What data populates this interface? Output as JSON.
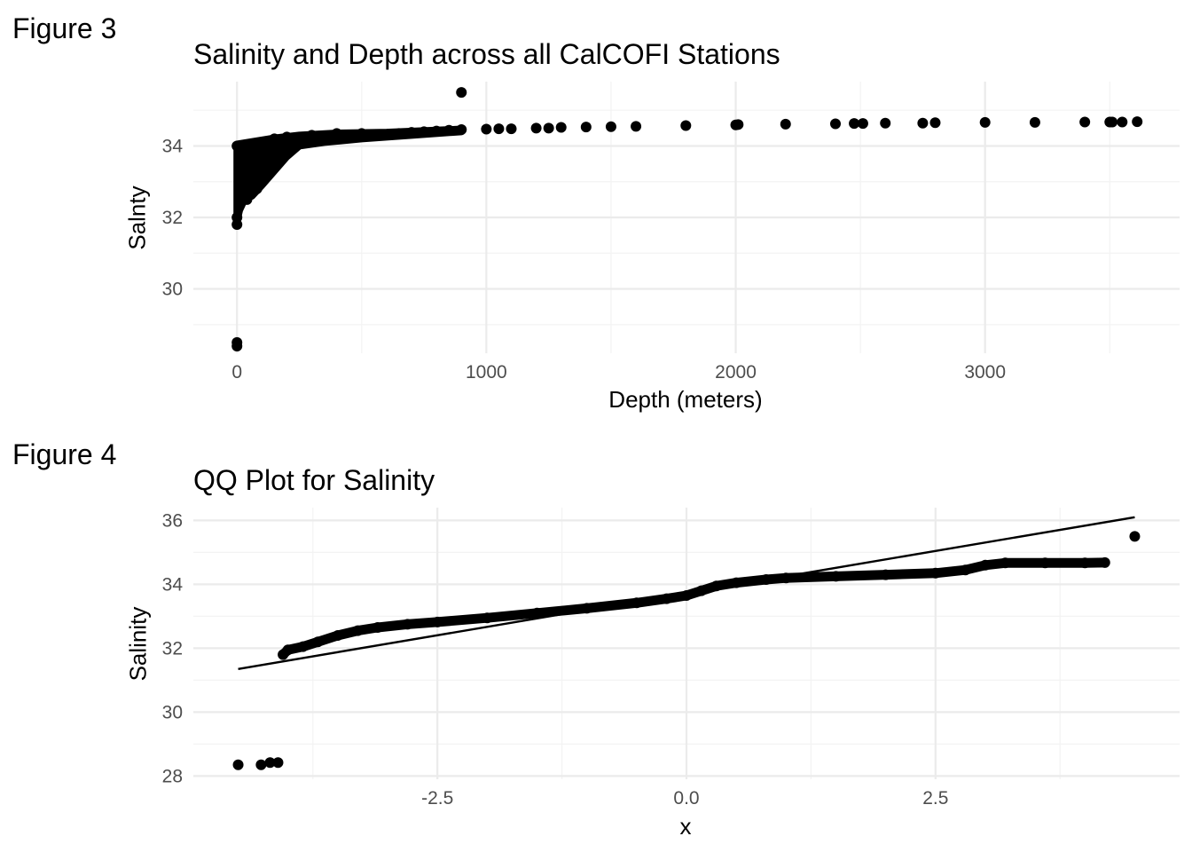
{
  "page": {
    "figure3_label": "Figure 3",
    "figure4_label": "Figure 4"
  },
  "colors": {
    "background": "#ffffff",
    "grid_major": "#ebebeb",
    "grid_minor": "#f3f3f3",
    "points": "#000000",
    "tick_text": "#4d4d4d"
  },
  "chart_data": [
    {
      "type": "scatter",
      "title": "Salinity and Depth across all CalCOFI Stations",
      "xlabel": "Depth (meters)",
      "ylabel": "Salnty",
      "xlim": [
        -175,
        3780
      ],
      "ylim": [
        28.2,
        35.8
      ],
      "x_ticks": [
        0,
        1000,
        2000,
        3000
      ],
      "x_tick_labels": [
        "0",
        "1000",
        "2000",
        "3000"
      ],
      "y_ticks": [
        30,
        32,
        34
      ],
      "y_tick_labels": [
        "30",
        "32",
        "34"
      ],
      "grid": true,
      "dense_region": {
        "description_of_mass": "shallow samples",
        "points": [
          [
            0,
            34.0
          ],
          [
            0,
            32.0
          ],
          [
            0,
            31.8
          ],
          [
            10,
            33.0
          ],
          [
            20,
            32.6
          ],
          [
            40,
            32.5
          ],
          [
            60,
            32.7
          ],
          [
            80,
            32.8
          ],
          [
            100,
            33.0
          ],
          [
            120,
            33.3
          ],
          [
            150,
            33.6
          ],
          [
            180,
            33.8
          ],
          [
            200,
            34.0
          ],
          [
            250,
            34.1
          ],
          [
            300,
            34.15
          ],
          [
            350,
            34.2
          ],
          [
            400,
            34.2
          ],
          [
            450,
            34.25
          ],
          [
            500,
            34.3
          ],
          [
            550,
            34.3
          ],
          [
            600,
            34.32
          ],
          [
            650,
            34.35
          ],
          [
            700,
            34.38
          ],
          [
            750,
            34.4
          ],
          [
            800,
            34.42
          ],
          [
            850,
            34.44
          ],
          [
            900,
            34.46
          ],
          [
            50,
            34.05
          ],
          [
            100,
            34.1
          ],
          [
            150,
            34.2
          ],
          [
            200,
            34.25
          ],
          [
            300,
            34.3
          ],
          [
            400,
            34.35
          ],
          [
            500,
            34.35
          ]
        ]
      },
      "series": [
        {
          "points": [
            [
              0,
              28.4
            ],
            [
              0,
              28.5
            ],
            [
              900,
              35.5
            ],
            [
              1000,
              34.47
            ],
            [
              1050,
              34.48
            ],
            [
              1100,
              34.48
            ],
            [
              1200,
              34.5
            ],
            [
              1250,
              34.5
            ],
            [
              1300,
              34.52
            ],
            [
              1400,
              34.53
            ],
            [
              1500,
              34.54
            ],
            [
              1600,
              34.55
            ],
            [
              1800,
              34.57
            ],
            [
              2000,
              34.59
            ],
            [
              2010,
              34.6
            ],
            [
              2200,
              34.61
            ],
            [
              2400,
              34.62
            ],
            [
              2475,
              34.63
            ],
            [
              2510,
              34.63
            ],
            [
              2600,
              34.64
            ],
            [
              2750,
              34.64
            ],
            [
              2800,
              34.65
            ],
            [
              3000,
              34.66
            ],
            [
              3200,
              34.66
            ],
            [
              3400,
              34.67
            ],
            [
              3500,
              34.67
            ],
            [
              3510,
              34.67
            ],
            [
              3550,
              34.67
            ],
            [
              3610,
              34.68
            ]
          ]
        }
      ]
    },
    {
      "type": "scatter",
      "title": "QQ Plot for Salinity",
      "xlabel": "x",
      "ylabel": "Salinity",
      "xlim": [
        -4.95,
        4.95
      ],
      "ylim": [
        27.9,
        36.4
      ],
      "x_ticks": [
        -2.5,
        0.0,
        2.5
      ],
      "x_tick_labels": [
        "-2.5",
        "0.0",
        "2.5"
      ],
      "y_ticks": [
        28,
        30,
        32,
        34,
        36
      ],
      "y_tick_labels": [
        "28",
        "30",
        "32",
        "34",
        "36"
      ],
      "grid": true,
      "reference_line": {
        "x": [
          -4.5,
          4.5
        ],
        "y": [
          31.35,
          36.1
        ]
      },
      "series": [
        {
          "points": [
            [
              -4.5,
              28.35
            ],
            [
              -4.27,
              28.35
            ],
            [
              -4.18,
              28.42
            ],
            [
              -4.1,
              28.42
            ],
            [
              -4.05,
              31.8
            ],
            [
              -4.0,
              31.95
            ],
            [
              -3.85,
              32.05
            ],
            [
              -3.7,
              32.2
            ],
            [
              -3.5,
              32.4
            ],
            [
              -3.3,
              32.55
            ],
            [
              -3.1,
              32.65
            ],
            [
              -2.8,
              32.75
            ],
            [
              -2.5,
              32.82
            ],
            [
              -2.0,
              32.95
            ],
            [
              -1.5,
              33.1
            ],
            [
              -1.0,
              33.25
            ],
            [
              -0.5,
              33.42
            ],
            [
              -0.2,
              33.55
            ],
            [
              0.0,
              33.65
            ],
            [
              0.15,
              33.8
            ],
            [
              0.3,
              33.95
            ],
            [
              0.5,
              34.05
            ],
            [
              0.8,
              34.15
            ],
            [
              1.0,
              34.2
            ],
            [
              1.5,
              34.25
            ],
            [
              2.0,
              34.3
            ],
            [
              2.5,
              34.35
            ],
            [
              2.8,
              34.45
            ],
            [
              3.0,
              34.6
            ],
            [
              3.2,
              34.67
            ],
            [
              3.6,
              34.67
            ],
            [
              4.0,
              34.67
            ],
            [
              4.2,
              34.68
            ],
            [
              4.5,
              35.5
            ]
          ]
        }
      ]
    }
  ]
}
